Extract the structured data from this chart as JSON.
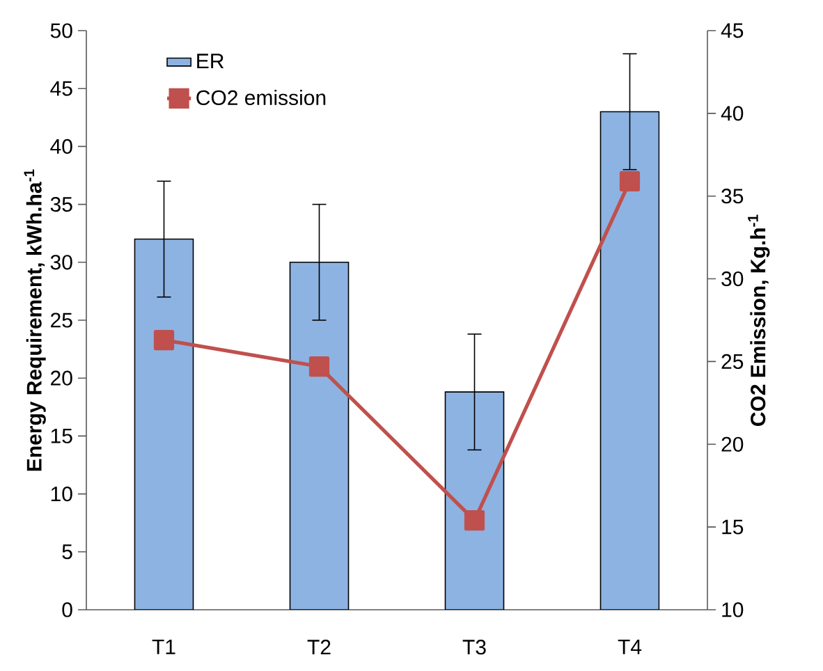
{
  "chart_data": {
    "type": "bar",
    "categories": [
      "T1",
      "T2",
      "T3",
      "T4"
    ],
    "ylabel": "Energy Requirement, kWh.ha$^{-1}$",
    "y2label": "CO2 Emission, Kg.h$^{-1}$",
    "ylim": [
      0,
      50
    ],
    "yticks": [
      0,
      5,
      10,
      15,
      20,
      25,
      30,
      35,
      40,
      45,
      50
    ],
    "y2lim": [
      10,
      45
    ],
    "y2ticks": [
      10,
      15,
      20,
      25,
      30,
      35,
      40,
      45
    ],
    "legend": "top left",
    "series": [
      {
        "name": "ER",
        "color": "#8db3e2",
        "values": [
          32,
          30,
          18.8,
          43
        ],
        "errors": [
          5,
          5,
          5,
          5
        ]
      },
      {
        "name": "CO2 emission",
        "type": "line",
        "axis": "y2",
        "color": "#c0504d",
        "values": [
          26.3,
          24.7,
          15.4,
          35.9
        ],
        "marker": "square",
        "line_style": "solid"
      }
    ]
  }
}
